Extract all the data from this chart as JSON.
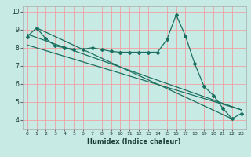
{
  "xlabel": "Humidex (Indice chaleur)",
  "bg_color": "#c8eae4",
  "grid_color": "#f0a0a0",
  "line_color": "#1a7060",
  "xlim": [
    -0.5,
    23.5
  ],
  "ylim": [
    3.5,
    10.3
  ],
  "xticks": [
    0,
    1,
    2,
    3,
    4,
    5,
    6,
    7,
    8,
    9,
    10,
    11,
    12,
    13,
    14,
    15,
    16,
    17,
    18,
    19,
    20,
    21,
    22,
    23
  ],
  "yticks": [
    4,
    5,
    6,
    7,
    8,
    9,
    10
  ],
  "main_x": [
    0,
    1,
    2,
    3,
    4,
    5,
    6,
    7,
    8,
    9,
    10,
    11,
    12,
    13,
    14,
    15,
    16,
    17,
    18,
    19,
    20,
    21,
    22,
    23
  ],
  "main_y": [
    8.62,
    9.1,
    8.5,
    8.1,
    8.0,
    7.92,
    7.92,
    8.0,
    7.9,
    7.8,
    7.75,
    7.75,
    7.75,
    7.75,
    7.75,
    8.45,
    9.82,
    8.65,
    7.1,
    5.85,
    5.35,
    4.65,
    4.05,
    4.35
  ],
  "line1_x": [
    0,
    23
  ],
  "line1_y": [
    8.75,
    4.55
  ],
  "line2_x": [
    0,
    23
  ],
  "line2_y": [
    8.15,
    4.55
  ],
  "line3_x": [
    1,
    22
  ],
  "line3_y": [
    9.1,
    4.05
  ]
}
